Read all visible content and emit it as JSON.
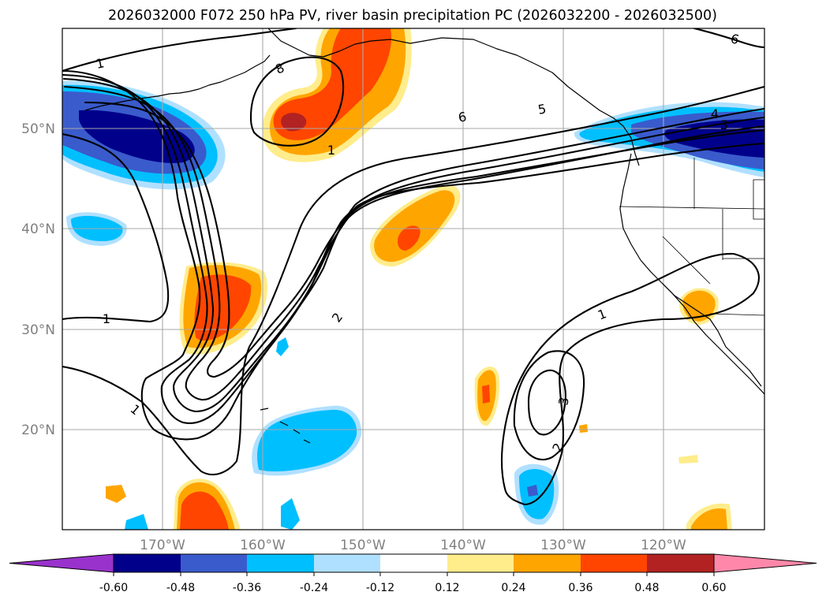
{
  "title": "2026032000 F072 250 hPa PV, river basin precipitation PC (2026032200 - 2026032500)",
  "x_ticks": [
    "170°W",
    "160°W",
    "150°W",
    "140°W",
    "130°W",
    "120°W"
  ],
  "y_ticks": [
    "50°N",
    "40°N",
    "30°N",
    "20°N"
  ],
  "colorbar": {
    "levels": [
      "-0.60",
      "-0.48",
      "-0.36",
      "-0.24",
      "-0.12",
      "0.12",
      "0.24",
      "0.36",
      "0.48",
      "0.60"
    ],
    "colors": [
      "#9932cc",
      "#00008b",
      "#3a5bcc",
      "#00bfff",
      "#b0e0ff",
      "#ffffff",
      "#ffec8b",
      "#ffa500",
      "#ff4500",
      "#b22222",
      "#ff88aa"
    ]
  },
  "contour_labels": [
    {
      "id": "label-1-nw",
      "text": "1"
    },
    {
      "id": "label-8",
      "text": "8"
    },
    {
      "id": "label-1-upper",
      "text": "1"
    },
    {
      "id": "label-6-mid",
      "text": "6"
    },
    {
      "id": "label-5",
      "text": "5"
    },
    {
      "id": "label-6-ne",
      "text": "6"
    },
    {
      "id": "label-4",
      "text": "4"
    },
    {
      "id": "label-3-ne",
      "text": "3"
    },
    {
      "id": "label-1-west",
      "text": "1"
    },
    {
      "id": "label-2-center",
      "text": "2"
    },
    {
      "id": "label-1-sw",
      "text": "1"
    },
    {
      "id": "label-1-east",
      "text": "1"
    },
    {
      "id": "label-3-east",
      "text": "3"
    },
    {
      "id": "label-2-east",
      "text": "2"
    }
  ],
  "map_features": [
    "250 hPa PV contours",
    "precipitation PC shading",
    "coastlines",
    "state borders"
  ]
}
